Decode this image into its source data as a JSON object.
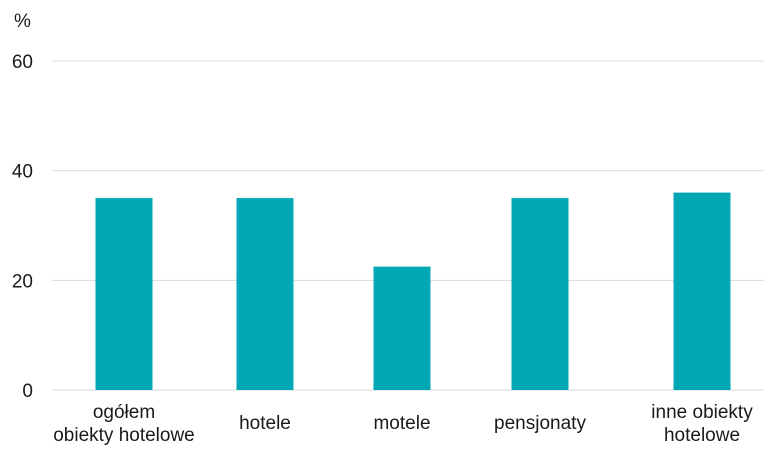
{
  "chart_data": {
    "type": "bar",
    "title": "",
    "xlabel": "",
    "ylabel": "%",
    "ylim": [
      0,
      60
    ],
    "yticks": [
      0,
      20,
      40,
      60
    ],
    "grid": true,
    "legend": "none",
    "bar_color": "#00a8b5",
    "grid_color": "#d9d9d9",
    "categories": [
      [
        "ogółem",
        "obiekty hotelowe"
      ],
      [
        "hotele"
      ],
      [
        "motele"
      ],
      [
        "pensjonaty"
      ],
      [
        "inne obiekty",
        "hotelowe"
      ]
    ],
    "values": [
      35,
      35,
      22.5,
      35,
      36
    ]
  }
}
